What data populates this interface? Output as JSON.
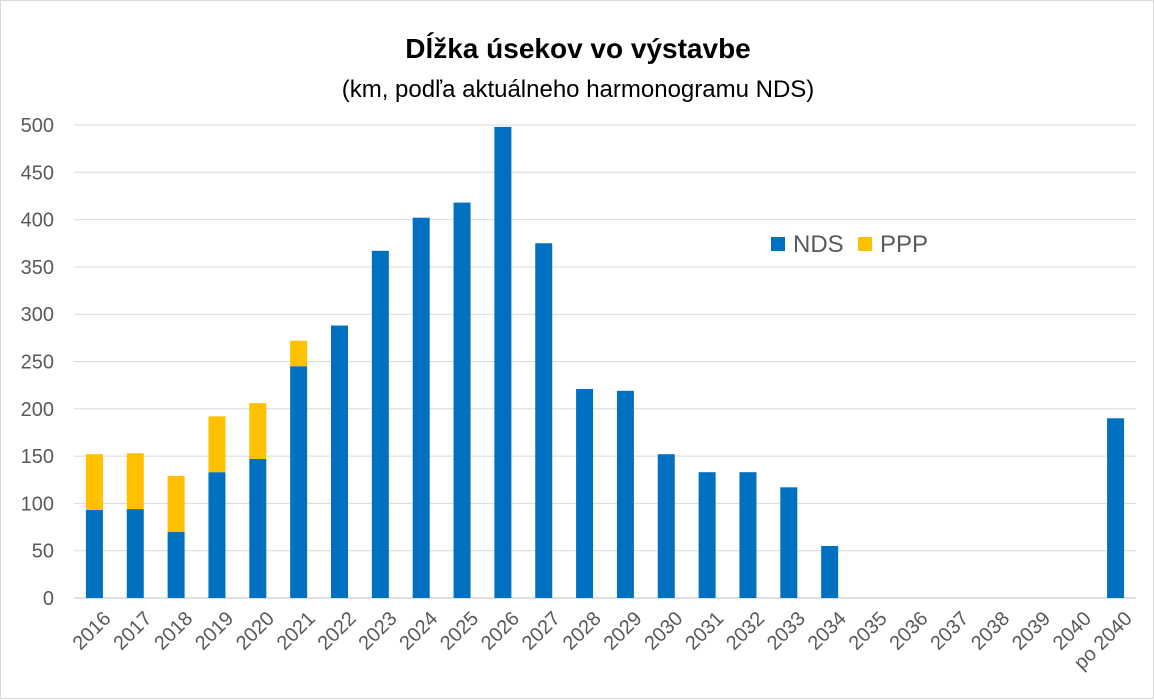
{
  "chart_data": {
    "type": "bar",
    "stacked": true,
    "title": "Dĺžka úsekov vo výstavbe",
    "subtitle": "(km, podľa aktuálneho harmonogramu NDS)",
    "xlabel": "",
    "ylabel": "",
    "ylim": [
      0,
      500
    ],
    "yticks": [
      0,
      50,
      100,
      150,
      200,
      250,
      300,
      350,
      400,
      450,
      500
    ],
    "grid": true,
    "legend_position": "top-right",
    "categories": [
      "2016",
      "2017",
      "2018",
      "2019",
      "2020",
      "2021",
      "2022",
      "2023",
      "2024",
      "2025",
      "2026",
      "2027",
      "2028",
      "2029",
      "2030",
      "2031",
      "2032",
      "2033",
      "2034",
      "2035",
      "2036",
      "2037",
      "2038",
      "2039",
      "2040",
      "po 2040"
    ],
    "series": [
      {
        "name": "NDS",
        "color": "#0070c0",
        "values": [
          93,
          94,
          70,
          133,
          147,
          245,
          288,
          367,
          402,
          418,
          498,
          375,
          221,
          219,
          152,
          133,
          133,
          117,
          55,
          0,
          0,
          0,
          0,
          0,
          0,
          190
        ]
      },
      {
        "name": "PPP",
        "color": "#ffc000",
        "values": [
          59,
          59,
          59,
          59,
          59,
          27,
          0,
          0,
          0,
          0,
          0,
          0,
          0,
          0,
          0,
          0,
          0,
          0,
          0,
          0,
          0,
          0,
          0,
          0,
          0,
          0
        ]
      }
    ]
  }
}
